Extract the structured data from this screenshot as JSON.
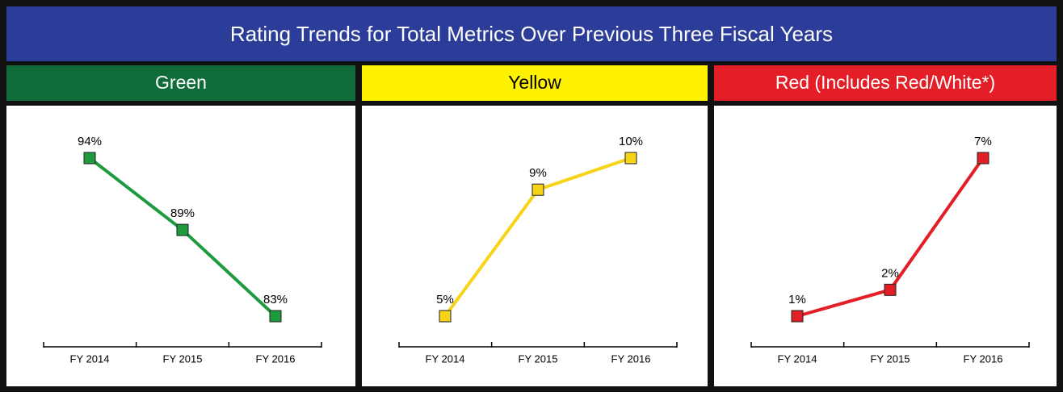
{
  "title": "Rating Trends for Total Metrics Over Previous Three Fiscal Years",
  "chart_data": [
    {
      "type": "line",
      "title": "Green",
      "header_color": "#0f6b3a",
      "header_text_color": "#ffffff",
      "color": "#1e9b3f",
      "categories": [
        "FY 2014",
        "FY 2015",
        "FY 2016"
      ],
      "values": [
        94,
        89,
        83
      ],
      "value_labels": [
        "94%",
        "89%",
        "83%"
      ]
    },
    {
      "type": "line",
      "title": "Yellow",
      "header_color": "#fff200",
      "header_text_color": "#000000",
      "color": "#f7d417",
      "categories": [
        "FY 2014",
        "FY 2015",
        "FY 2016"
      ],
      "values": [
        5,
        9,
        10
      ],
      "value_labels": [
        "5%",
        "9%",
        "10%"
      ]
    },
    {
      "type": "line",
      "title": "Red (Includes Red/White*)",
      "header_color": "#e31e26",
      "header_text_color": "#ffffff",
      "color": "#e31e26",
      "categories": [
        "FY 2014",
        "FY 2015",
        "FY 2016"
      ],
      "values": [
        1,
        2,
        7
      ],
      "value_labels": [
        "1%",
        "2%",
        "7%"
      ]
    }
  ]
}
